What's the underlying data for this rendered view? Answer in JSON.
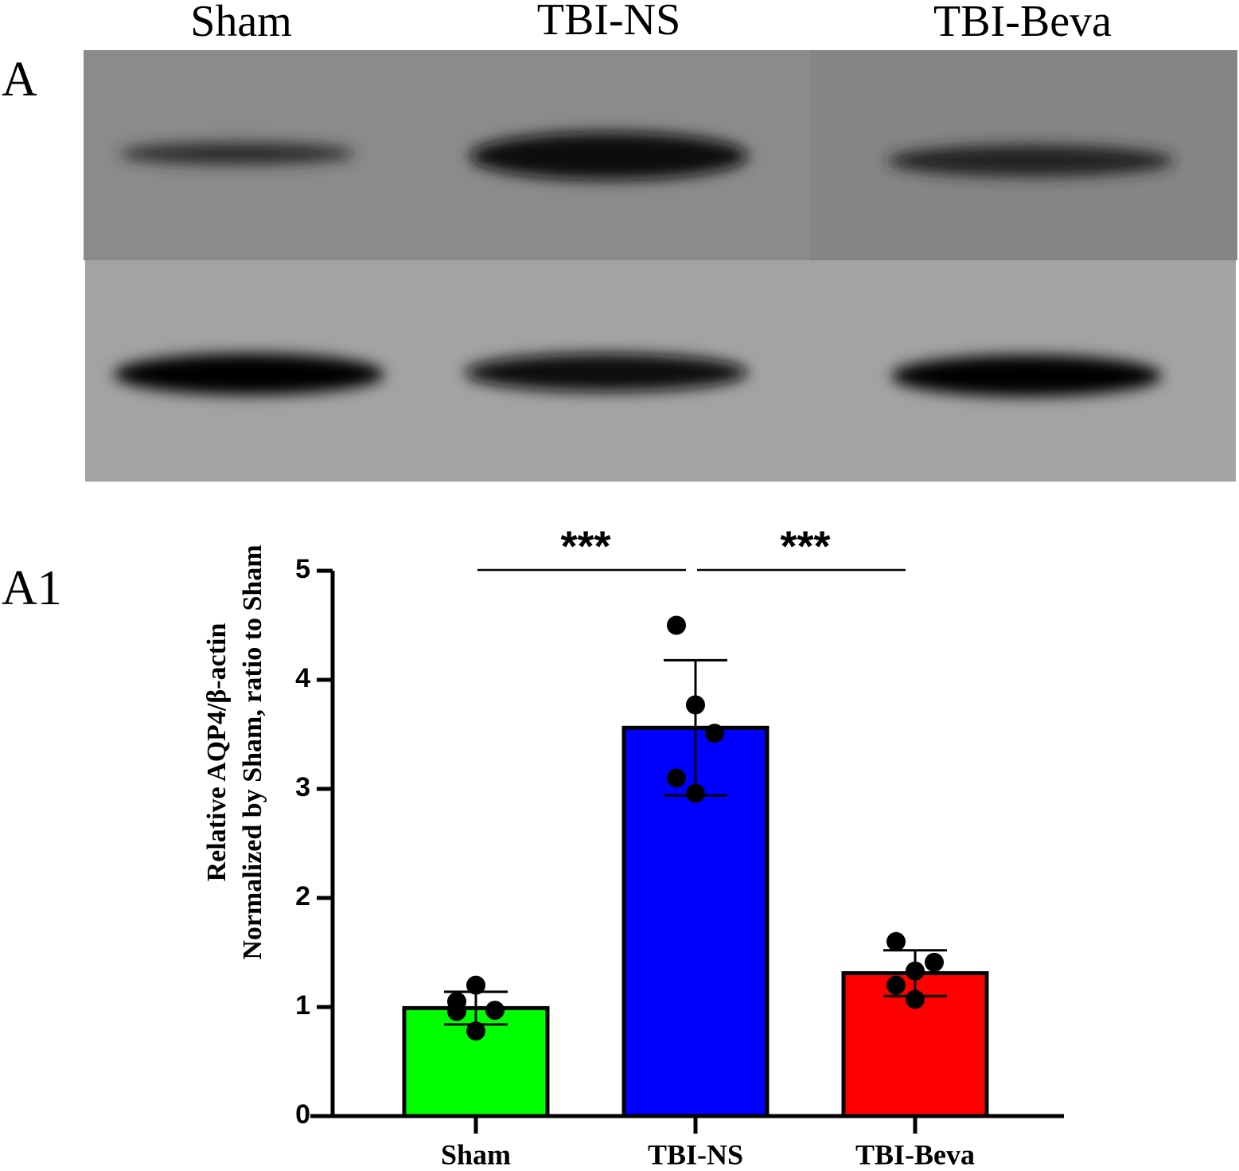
{
  "panel_labels": [
    "A",
    "A1"
  ],
  "blot": {
    "lanes": [
      "Sham",
      "TBI-NS",
      "TBI-Beva"
    ]
  },
  "chart_data": {
    "type": "bar",
    "ylabel": [
      "Relative AQP4/β-actin",
      "Normalized by Sham, ratio to Sham"
    ],
    "categories": [
      "Sham",
      "TBI-NS",
      "TBI-Beva"
    ],
    "values": [
      0.99,
      3.56,
      1.31
    ],
    "errors": [
      0.15,
      0.62,
      0.21
    ],
    "points": [
      [
        1.05,
        1.2,
        0.97,
        0.96,
        0.78
      ],
      [
        4.5,
        3.77,
        3.51,
        3.1,
        2.96
      ],
      [
        1.6,
        1.33,
        1.41,
        1.2,
        1.07
      ]
    ],
    "colors": [
      "#00ff00",
      "#0000ff",
      "#ff0000"
    ],
    "ylim": [
      0,
      5
    ],
    "yticks": [
      0,
      1,
      2,
      3,
      4,
      5
    ],
    "significance": [
      {
        "label": "***",
        "between": [
          "Sham",
          "TBI-NS"
        ]
      },
      {
        "label": "***",
        "between": [
          "TBI-NS",
          "TBI-Beva"
        ]
      }
    ]
  }
}
